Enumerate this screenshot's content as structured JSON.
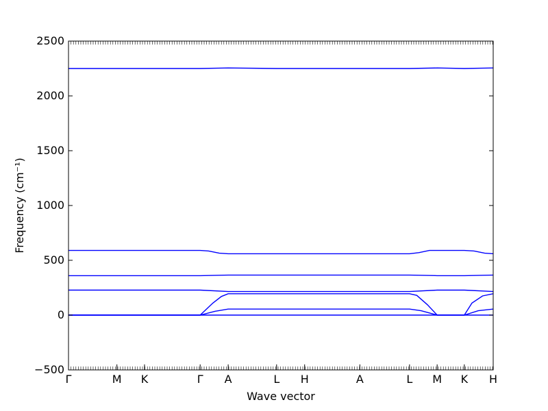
{
  "chart_data": {
    "type": "line",
    "title": "",
    "xlabel": "Wave vector",
    "ylabel": "Frequency (cm⁻¹)",
    "ylim": [
      -500,
      2500
    ],
    "yticks": [
      -500,
      0,
      500,
      1000,
      1500,
      2000,
      2500
    ],
    "xlim": [
      0,
      1
    ],
    "xtick_labels": [
      {
        "label": "Γ",
        "x": 0.0
      },
      {
        "label": "M",
        "x": 0.114
      },
      {
        "label": "K",
        "x": 0.179
      },
      {
        "label": "Γ",
        "x": 0.31
      },
      {
        "label": "A",
        "x": 0.376
      },
      {
        "label": "L",
        "x": 0.49
      },
      {
        "label": "H",
        "x": 0.556
      },
      {
        "label": "A",
        "x": 0.686
      },
      {
        "label": "L",
        "x": 0.803
      },
      {
        "label": "M",
        "x": 0.868
      },
      {
        "label": "K",
        "x": 0.932
      },
      {
        "label": "H",
        "x": 1.0
      }
    ],
    "grid": false,
    "reference_line": {
      "y": 0,
      "style": "dotted"
    },
    "series_color": "#0000ff",
    "series": [
      {
        "points": [
          [
            0.0,
            0
          ],
          [
            0.31,
            0
          ],
          [
            0.376,
            0
          ],
          [
            0.49,
            0
          ],
          [
            0.556,
            0
          ],
          [
            0.686,
            0
          ],
          [
            0.803,
            0
          ],
          [
            0.868,
            0
          ],
          [
            0.932,
            0
          ],
          [
            1.0,
            0
          ]
        ]
      },
      {
        "points": [
          [
            0.0,
            0
          ],
          [
            0.31,
            0
          ],
          [
            0.345,
            35
          ],
          [
            0.376,
            55
          ],
          [
            0.49,
            55
          ],
          [
            0.556,
            55
          ],
          [
            0.686,
            55
          ],
          [
            0.803,
            55
          ],
          [
            0.83,
            40
          ],
          [
            0.868,
            0
          ],
          [
            0.932,
            0
          ],
          [
            0.965,
            40
          ],
          [
            1.0,
            55
          ]
        ]
      },
      {
        "points": [
          [
            0.0,
            0
          ],
          [
            0.31,
            0
          ],
          [
            0.34,
            110
          ],
          [
            0.36,
            170
          ],
          [
            0.376,
            195
          ],
          [
            0.49,
            195
          ],
          [
            0.556,
            195
          ],
          [
            0.686,
            195
          ],
          [
            0.803,
            195
          ],
          [
            0.82,
            180
          ],
          [
            0.845,
            95
          ],
          [
            0.868,
            0
          ],
          [
            0.932,
            0
          ],
          [
            0.95,
            110
          ],
          [
            0.975,
            175
          ],
          [
            1.0,
            195
          ]
        ]
      },
      {
        "points": [
          [
            0.0,
            228
          ],
          [
            0.31,
            228
          ],
          [
            0.376,
            215
          ],
          [
            0.49,
            215
          ],
          [
            0.556,
            215
          ],
          [
            0.686,
            215
          ],
          [
            0.803,
            215
          ],
          [
            0.868,
            228
          ],
          [
            0.932,
            228
          ],
          [
            1.0,
            215
          ]
        ]
      },
      {
        "points": [
          [
            0.0,
            360
          ],
          [
            0.31,
            360
          ],
          [
            0.376,
            365
          ],
          [
            0.49,
            365
          ],
          [
            0.556,
            365
          ],
          [
            0.686,
            365
          ],
          [
            0.803,
            365
          ],
          [
            0.868,
            360
          ],
          [
            0.932,
            360
          ],
          [
            1.0,
            365
          ]
        ]
      },
      {
        "points": [
          [
            0.0,
            590
          ],
          [
            0.31,
            590
          ],
          [
            0.33,
            585
          ],
          [
            0.355,
            565
          ],
          [
            0.376,
            560
          ],
          [
            0.49,
            560
          ],
          [
            0.556,
            560
          ],
          [
            0.686,
            560
          ],
          [
            0.803,
            560
          ],
          [
            0.825,
            570
          ],
          [
            0.85,
            590
          ],
          [
            0.868,
            590
          ],
          [
            0.932,
            590
          ],
          [
            0.955,
            585
          ],
          [
            0.98,
            565
          ],
          [
            1.0,
            560
          ]
        ]
      },
      {
        "points": [
          [
            0.0,
            2250
          ],
          [
            0.31,
            2250
          ],
          [
            0.376,
            2255
          ],
          [
            0.49,
            2250
          ],
          [
            0.556,
            2250
          ],
          [
            0.686,
            2250
          ],
          [
            0.803,
            2250
          ],
          [
            0.868,
            2255
          ],
          [
            0.932,
            2250
          ],
          [
            1.0,
            2255
          ]
        ]
      }
    ]
  }
}
